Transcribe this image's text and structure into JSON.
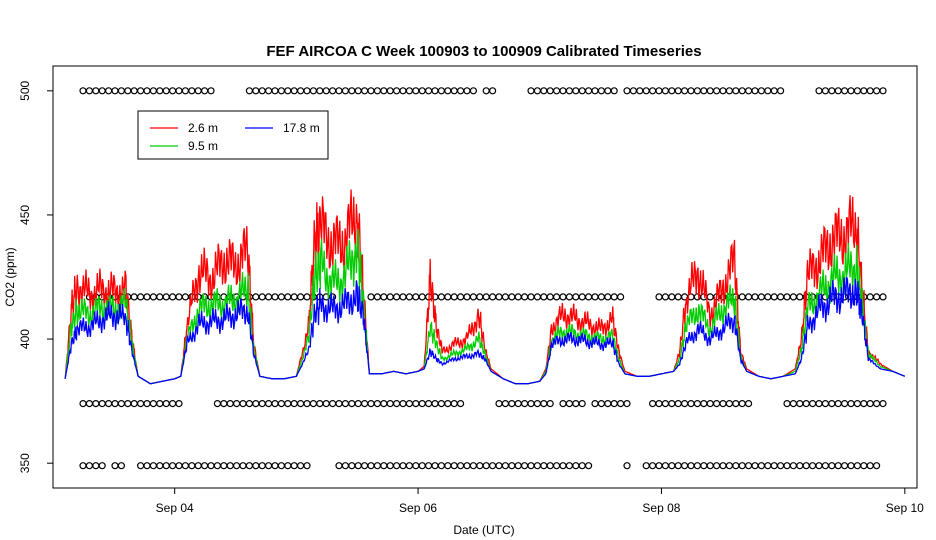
{
  "chart_data": {
    "type": "line",
    "title": "FEF AIRCOA C  Week 100903 to 100909  Calibrated Timeseries",
    "xlabel": "Date (UTC)",
    "ylabel": "CO2 (ppm)",
    "x_ticks": [
      "Sep 04",
      "Sep 06",
      "Sep 08",
      "Sep 10"
    ],
    "y_ticks": [
      350,
      400,
      450,
      500
    ],
    "xlim_days": [
      3.0,
      10.1
    ],
    "ylim": [
      340,
      510
    ],
    "grid": false,
    "legend_position": "top-left",
    "legend": [
      "2.6 m",
      "9.5 m",
      "17.8 m"
    ],
    "series": [
      {
        "name": "2.6 m",
        "color": "#ff0000",
        "x": [
          3.1,
          3.15,
          3.2,
          3.3,
          3.4,
          3.5,
          3.6,
          3.65,
          3.7,
          3.8,
          3.9,
          4.0,
          4.05,
          4.1,
          4.2,
          4.3,
          4.4,
          4.5,
          4.6,
          4.65,
          4.7,
          4.8,
          4.9,
          5.0,
          5.1,
          5.15,
          5.2,
          5.3,
          5.4,
          5.5,
          5.55,
          5.6,
          5.7,
          5.8,
          5.9,
          6.0,
          6.05,
          6.1,
          6.15,
          6.2,
          6.3,
          6.4,
          6.5,
          6.55,
          6.6,
          6.7,
          6.8,
          6.9,
          7.0,
          7.05,
          7.1,
          7.2,
          7.3,
          7.4,
          7.5,
          7.6,
          7.65,
          7.7,
          7.8,
          7.9,
          8.0,
          8.1,
          8.15,
          8.2,
          8.3,
          8.4,
          8.5,
          8.6,
          8.65,
          8.7,
          8.8,
          8.9,
          9.0,
          9.1,
          9.15,
          9.2,
          9.3,
          9.4,
          9.5,
          9.6,
          9.65,
          9.7,
          9.8,
          9.9,
          10.0
        ],
        "values": [
          384,
          412,
          422,
          418,
          420,
          419,
          420,
          400,
          385,
          382,
          383,
          384,
          385,
          405,
          428,
          424,
          432,
          430,
          436,
          398,
          385,
          384,
          384,
          385,
          405,
          440,
          445,
          438,
          440,
          452,
          420,
          386,
          386,
          387,
          386,
          387,
          389,
          425,
          405,
          395,
          398,
          400,
          410,
          396,
          388,
          384,
          382,
          382,
          383,
          388,
          405,
          410,
          408,
          406,
          404,
          408,
          395,
          387,
          385,
          385,
          386,
          387,
          395,
          415,
          428,
          410,
          420,
          432,
          395,
          388,
          385,
          384,
          385,
          388,
          400,
          425,
          432,
          440,
          442,
          446,
          420,
          395,
          390,
          387,
          385
        ]
      },
      {
        "name": "9.5 m",
        "color": "#00cc00",
        "x": [
          3.1,
          3.15,
          3.2,
          3.3,
          3.4,
          3.5,
          3.6,
          3.65,
          3.7,
          3.8,
          3.9,
          4.0,
          4.05,
          4.1,
          4.2,
          4.3,
          4.4,
          4.5,
          4.6,
          4.65,
          4.7,
          4.8,
          4.9,
          5.0,
          5.1,
          5.15,
          5.2,
          5.3,
          5.4,
          5.5,
          5.55,
          5.6,
          5.7,
          5.8,
          5.9,
          6.0,
          6.05,
          6.1,
          6.15,
          6.2,
          6.3,
          6.4,
          6.5,
          6.55,
          6.6,
          6.7,
          6.8,
          6.9,
          7.0,
          7.05,
          7.1,
          7.2,
          7.3,
          7.4,
          7.5,
          7.6,
          7.65,
          7.7,
          7.8,
          7.9,
          8.0,
          8.1,
          8.15,
          8.2,
          8.3,
          8.4,
          8.5,
          8.6,
          8.65,
          8.7,
          8.8,
          8.9,
          9.0,
          9.1,
          9.15,
          9.2,
          9.3,
          9.4,
          9.5,
          9.6,
          9.65,
          9.7,
          9.8,
          9.9,
          10.0
        ],
        "values": [
          384,
          405,
          412,
          410,
          413,
          412,
          414,
          398,
          385,
          382,
          383,
          384,
          385,
          400,
          412,
          414,
          414,
          416,
          420,
          396,
          385,
          384,
          384,
          385,
          400,
          425,
          430,
          422,
          425,
          438,
          415,
          386,
          386,
          387,
          386,
          387,
          388,
          405,
          398,
          392,
          394,
          396,
          400,
          394,
          387,
          384,
          382,
          382,
          383,
          387,
          400,
          403,
          402,
          401,
          400,
          401,
          392,
          386,
          385,
          385,
          386,
          387,
          392,
          405,
          412,
          404,
          412,
          416,
          393,
          387,
          385,
          384,
          385,
          387,
          396,
          412,
          418,
          424,
          426,
          430,
          414,
          394,
          389,
          387,
          385
        ]
      },
      {
        "name": "17.8 m",
        "color": "#0000ff",
        "x": [
          3.1,
          3.15,
          3.2,
          3.3,
          3.4,
          3.5,
          3.6,
          3.65,
          3.7,
          3.8,
          3.9,
          4.0,
          4.05,
          4.1,
          4.2,
          4.3,
          4.4,
          4.5,
          4.6,
          4.65,
          4.7,
          4.8,
          4.9,
          5.0,
          5.1,
          5.15,
          5.2,
          5.3,
          5.4,
          5.5,
          5.55,
          5.6,
          5.7,
          5.8,
          5.9,
          6.0,
          6.05,
          6.1,
          6.15,
          6.2,
          6.3,
          6.4,
          6.5,
          6.55,
          6.6,
          6.7,
          6.8,
          6.9,
          7.0,
          7.05,
          7.1,
          7.2,
          7.3,
          7.4,
          7.5,
          7.6,
          7.65,
          7.7,
          7.8,
          7.9,
          8.0,
          8.1,
          8.15,
          8.2,
          8.3,
          8.4,
          8.5,
          8.6,
          8.65,
          8.7,
          8.8,
          8.9,
          9.0,
          9.1,
          9.15,
          9.2,
          9.3,
          9.4,
          9.5,
          9.6,
          9.65,
          9.7,
          9.8,
          9.9,
          10.0
        ],
        "values": [
          384,
          398,
          404,
          405,
          408,
          410,
          408,
          395,
          385,
          382,
          383,
          384,
          385,
          398,
          406,
          407,
          408,
          410,
          412,
          394,
          385,
          384,
          384,
          385,
          395,
          410,
          414,
          412,
          414,
          418,
          410,
          386,
          386,
          387,
          386,
          387,
          388,
          395,
          392,
          390,
          392,
          393,
          394,
          392,
          387,
          384,
          382,
          382,
          383,
          386,
          398,
          400,
          400,
          399,
          398,
          398,
          390,
          386,
          385,
          385,
          386,
          387,
          390,
          398,
          404,
          400,
          404,
          408,
          392,
          387,
          385,
          384,
          385,
          386,
          392,
          405,
          412,
          416,
          418,
          420,
          410,
          392,
          388,
          387,
          385
        ]
      }
    ],
    "marker_rows": [
      {
        "y": 500,
        "gaps": [
          [
            3.0,
            3.1
          ],
          [
            6.5,
            6.52
          ],
          [
            7.63,
            7.68
          ],
          [
            10.02,
            10.1
          ]
        ]
      },
      {
        "y": 417,
        "gaps": [
          [
            3.0,
            3.15
          ],
          [
            7.7,
            7.82
          ],
          [
            10.02,
            10.1
          ]
        ]
      },
      {
        "y": 374,
        "gaps": [
          [
            3.0,
            3.1
          ],
          [
            7.1,
            7.15
          ],
          [
            7.4,
            7.45
          ],
          [
            7.76,
            7.9
          ],
          [
            10.02,
            10.1
          ]
        ]
      },
      {
        "y": 349,
        "gaps": [
          [
            3.0,
            3.1
          ],
          [
            3.42,
            3.48
          ],
          [
            3.6,
            3.7
          ],
          [
            7.75,
            7.85
          ],
          [
            10.02,
            10.1
          ]
        ]
      }
    ]
  }
}
